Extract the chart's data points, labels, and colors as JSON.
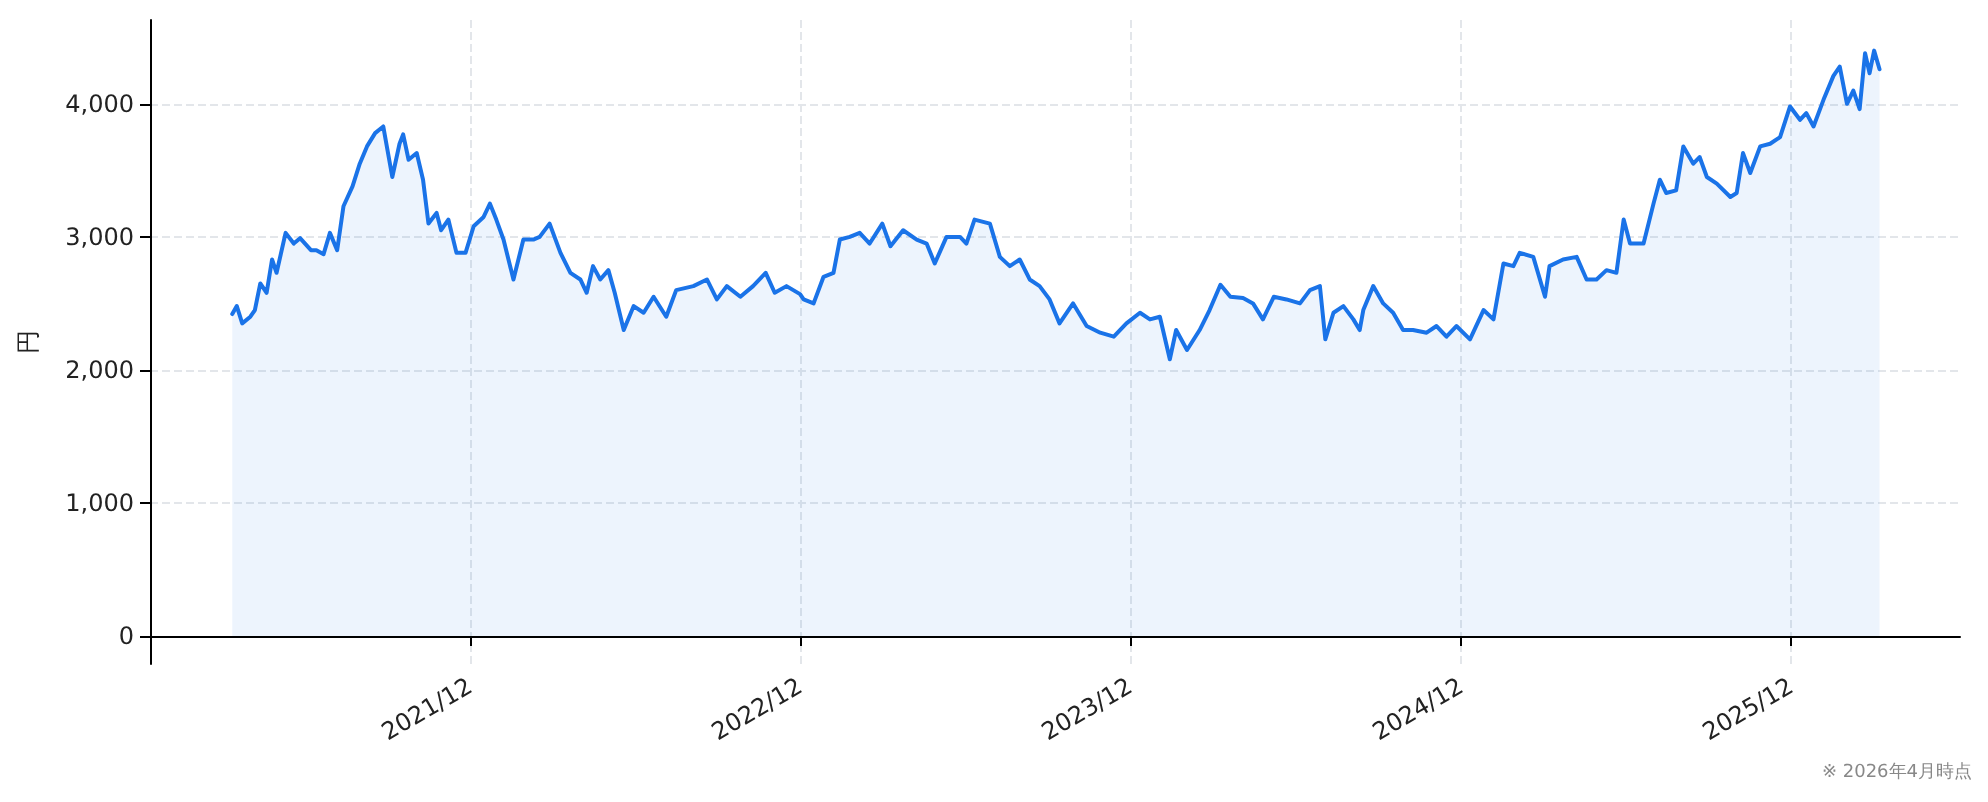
{
  "chart_data": {
    "type": "area",
    "ylabel": "円",
    "annotations": [
      "※ 2026年4月時点"
    ],
    "grid": true,
    "marker": "none",
    "line_style": "solid",
    "xlim": [
      "2020-12-12",
      "2026-06-06"
    ],
    "xticks": [
      {
        "value": "2021-12-01",
        "label": "2021/12"
      },
      {
        "value": "2022-12-01",
        "label": "2022/12"
      },
      {
        "value": "2023-12-01",
        "label": "2023/12"
      },
      {
        "value": "2024-12-01",
        "label": "2024/12"
      },
      {
        "value": "2025-12-01",
        "label": "2025/12"
      }
    ],
    "ylim": [
      -210,
      4630
    ],
    "yticks": [
      0,
      {
        "value": 1000,
        "label": "1,000"
      },
      {
        "value": 2000,
        "label": "2,000"
      },
      {
        "value": 3000,
        "label": "3,000"
      },
      {
        "value": 4000,
        "label": "4,000"
      }
    ],
    "x": [
      "2021-03-13",
      "2021-03-18",
      "2021-03-24",
      "2021-04-02",
      "2021-04-07",
      "2021-04-13",
      "2021-04-20",
      "2021-04-26",
      "2021-05-01",
      "2021-05-11",
      "2021-05-20",
      "2021-05-27",
      "2021-06-08",
      "2021-06-14",
      "2021-06-22",
      "2021-06-29",
      "2021-07-07",
      "2021-07-14",
      "2021-07-24",
      "2021-08-01",
      "2021-08-09",
      "2021-08-18",
      "2021-08-27",
      "2021-09-06",
      "2021-09-14",
      "2021-09-18",
      "2021-09-24",
      "2021-10-03",
      "2021-10-10",
      "2021-10-16",
      "2021-10-25",
      "2021-10-30",
      "2021-11-07",
      "2021-11-16",
      "2021-11-26",
      "2021-12-05",
      "2021-12-16",
      "2021-12-23",
      "2021-12-30",
      "2022-01-07",
      "2022-01-18",
      "2022-01-29",
      "2022-02-09",
      "2022-02-16",
      "2022-02-27",
      "2022-03-11",
      "2022-03-22",
      "2022-04-02",
      "2022-04-09",
      "2022-04-16",
      "2022-04-24",
      "2022-05-03",
      "2022-05-10",
      "2022-05-20",
      "2022-05-31",
      "2022-06-11",
      "2022-06-22",
      "2022-07-06",
      "2022-07-17",
      "2022-08-05",
      "2022-08-20",
      "2022-08-31",
      "2022-09-11",
      "2022-09-26",
      "2022-10-10",
      "2022-10-24",
      "2022-11-03",
      "2022-11-16",
      "2022-12-01",
      "2022-12-05",
      "2022-12-16",
      "2022-12-27",
      "2023-01-07",
      "2023-01-14",
      "2023-01-25",
      "2023-02-05",
      "2023-02-16",
      "2023-03-02",
      "2023-03-11",
      "2023-03-25",
      "2023-04-09",
      "2023-04-20",
      "2023-04-29",
      "2023-05-12",
      "2023-05-27",
      "2023-06-03",
      "2023-06-12",
      "2023-06-29",
      "2023-07-10",
      "2023-07-21",
      "2023-08-01",
      "2023-08-12",
      "2023-08-23",
      "2023-09-03",
      "2023-09-14",
      "2023-09-29",
      "2023-10-14",
      "2023-10-29",
      "2023-11-13",
      "2023-11-27",
      "2023-12-12",
      "2023-12-23",
      "2024-01-03",
      "2024-01-14",
      "2024-01-21",
      "2024-02-02",
      "2024-02-16",
      "2024-02-27",
      "2024-03-10",
      "2024-03-21",
      "2024-04-04",
      "2024-04-15",
      "2024-04-26",
      "2024-05-08",
      "2024-05-22",
      "2024-06-06",
      "2024-06-17",
      "2024-06-28",
      "2024-07-04",
      "2024-07-13",
      "2024-07-24",
      "2024-08-04",
      "2024-08-11",
      "2024-08-15",
      "2024-08-26",
      "2024-09-06",
      "2024-09-17",
      "2024-09-28",
      "2024-10-09",
      "2024-10-24",
      "2024-11-04",
      "2024-11-15",
      "2024-11-26",
      "2024-12-11",
      "2024-12-26",
      "2025-01-06",
      "2025-01-17",
      "2025-01-28",
      "2025-02-04",
      "2025-02-19",
      "2025-03-04",
      "2025-03-09",
      "2025-03-24",
      "2025-04-08",
      "2025-04-19",
      "2025-04-30",
      "2025-05-11",
      "2025-05-22",
      "2025-05-30",
      "2025-06-06",
      "2025-06-21",
      "2025-07-02",
      "2025-07-09",
      "2025-07-16",
      "2025-07-27",
      "2025-08-04",
      "2025-08-15",
      "2025-08-22",
      "2025-08-30",
      "2025-09-10",
      "2025-09-25",
      "2025-10-02",
      "2025-10-09",
      "2025-10-17",
      "2025-10-28",
      "2025-11-08",
      "2025-11-19",
      "2025-11-30",
      "2025-12-11",
      "2025-12-18",
      "2025-12-26",
      "2026-01-06",
      "2026-01-17",
      "2026-01-24",
      "2026-02-01",
      "2026-02-08",
      "2026-02-15",
      "2026-02-21",
      "2026-02-26",
      "2026-03-03",
      "2026-03-09"
    ],
    "series": [
      {
        "color": "#1a73e8",
        "values": [
          2420,
          2480,
          2350,
          2400,
          2450,
          2650,
          2580,
          2830,
          2730,
          3030,
          2950,
          2990,
          2900,
          2900,
          2870,
          3030,
          2900,
          3230,
          3380,
          3550,
          3680,
          3780,
          3830,
          3450,
          3700,
          3770,
          3580,
          3630,
          3430,
          3100,
          3180,
          3050,
          3130,
          2880,
          2880,
          3080,
          3150,
          3250,
          3130,
          2980,
          2680,
          2980,
          2980,
          3000,
          3100,
          2880,
          2730,
          2680,
          2580,
          2780,
          2680,
          2750,
          2580,
          2300,
          2480,
          2430,
          2550,
          2400,
          2600,
          2630,
          2680,
          2530,
          2630,
          2550,
          2630,
          2730,
          2580,
          2630,
          2570,
          2530,
          2500,
          2700,
          2730,
          2980,
          3000,
          3030,
          2950,
          3100,
          2930,
          3050,
          2980,
          2950,
          2800,
          3000,
          3000,
          2950,
          3130,
          3100,
          2850,
          2780,
          2830,
          2680,
          2630,
          2530,
          2350,
          2500,
          2330,
          2280,
          2250,
          2350,
          2430,
          2380,
          2400,
          2080,
          2300,
          2150,
          2300,
          2450,
          2640,
          2550,
          2540,
          2500,
          2380,
          2550,
          2530,
          2500,
          2600,
          2630,
          2230,
          2430,
          2480,
          2380,
          2300,
          2450,
          2630,
          2500,
          2430,
          2300,
          2300,
          2280,
          2330,
          2250,
          2330,
          2230,
          2450,
          2380,
          2800,
          2780,
          2880,
          2850,
          2550,
          2780,
          2830,
          2850,
          2680,
          2680,
          2750,
          2730,
          3130,
          2950,
          2950,
          3250,
          3430,
          3330,
          3350,
          3680,
          3550,
          3600,
          3450,
          3400,
          3300,
          3330,
          3630,
          3480,
          3680,
          3700,
          3750,
          3980,
          3880,
          3930,
          3830,
          4030,
          4210,
          4280,
          4000,
          4100,
          3960,
          4380,
          4230,
          4400,
          4260
        ]
      }
    ]
  }
}
